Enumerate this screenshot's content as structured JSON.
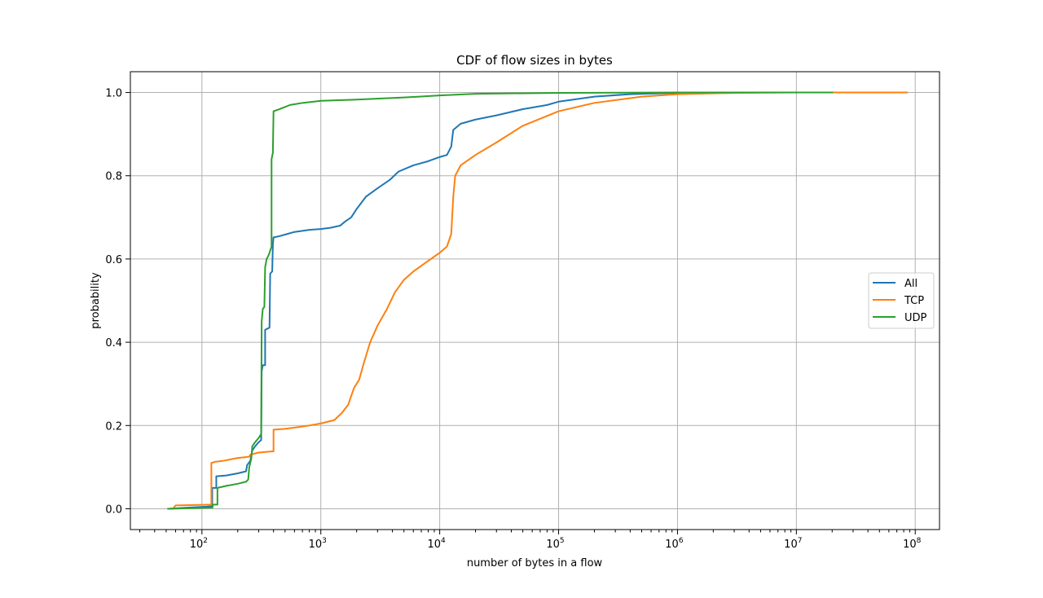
{
  "chart_data": {
    "type": "line",
    "title": "CDF of flow sizes in bytes",
    "xlabel": "number of bytes in a flow",
    "ylabel": "probability",
    "xscale": "log",
    "xlim": [
      25,
      160000000
    ],
    "ylim": [
      -0.05,
      1.05
    ],
    "grid": true,
    "legend_position": "center-right",
    "x_tick_labels": [
      {
        "base": "10",
        "exp": "2",
        "value": 100
      },
      {
        "base": "10",
        "exp": "3",
        "value": 1000
      },
      {
        "base": "10",
        "exp": "4",
        "value": 10000
      },
      {
        "base": "10",
        "exp": "5",
        "value": 100000
      },
      {
        "base": "10",
        "exp": "6",
        "value": 1000000
      },
      {
        "base": "10",
        "exp": "7",
        "value": 10000000
      },
      {
        "base": "10",
        "exp": "8",
        "value": 100000000
      }
    ],
    "y_ticks": [
      {
        "value": 0.0,
        "label": "0.0"
      },
      {
        "value": 0.2,
        "label": "0.2"
      },
      {
        "value": 0.4,
        "label": "0.4"
      },
      {
        "value": 0.6,
        "label": "0.6"
      },
      {
        "value": 0.8,
        "label": "0.8"
      },
      {
        "value": 1.0,
        "label": "1.0"
      }
    ],
    "series": [
      {
        "name": "All",
        "color": "#1f77b4",
        "points": [
          [
            52,
            0.0
          ],
          [
            80,
            0.003
          ],
          [
            110,
            0.005
          ],
          [
            122,
            0.006
          ],
          [
            122,
            0.05
          ],
          [
            132,
            0.05
          ],
          [
            132,
            0.078
          ],
          [
            160,
            0.08
          ],
          [
            200,
            0.085
          ],
          [
            235,
            0.09
          ],
          [
            240,
            0.105
          ],
          [
            255,
            0.115
          ],
          [
            265,
            0.14
          ],
          [
            280,
            0.15
          ],
          [
            300,
            0.16
          ],
          [
            315,
            0.165
          ],
          [
            318,
            0.33
          ],
          [
            325,
            0.345
          ],
          [
            340,
            0.345
          ],
          [
            340,
            0.43
          ],
          [
            370,
            0.435
          ],
          [
            375,
            0.565
          ],
          [
            390,
            0.57
          ],
          [
            395,
            0.635
          ],
          [
            400,
            0.652
          ],
          [
            450,
            0.655
          ],
          [
            520,
            0.66
          ],
          [
            600,
            0.665
          ],
          [
            800,
            0.67
          ],
          [
            1000,
            0.672
          ],
          [
            1200,
            0.675
          ],
          [
            1450,
            0.68
          ],
          [
            1600,
            0.69
          ],
          [
            1800,
            0.7
          ],
          [
            2000,
            0.72
          ],
          [
            2400,
            0.75
          ],
          [
            3000,
            0.77
          ],
          [
            3800,
            0.79
          ],
          [
            4500,
            0.81
          ],
          [
            6000,
            0.825
          ],
          [
            8000,
            0.835
          ],
          [
            10000,
            0.845
          ],
          [
            11500,
            0.85
          ],
          [
            12500,
            0.87
          ],
          [
            13000,
            0.91
          ],
          [
            15000,
            0.925
          ],
          [
            20000,
            0.935
          ],
          [
            30000,
            0.945
          ],
          [
            50000,
            0.96
          ],
          [
            80000,
            0.97
          ],
          [
            100000,
            0.978
          ],
          [
            200000,
            0.99
          ],
          [
            400000,
            0.996
          ],
          [
            1000000,
            0.999
          ],
          [
            5000000,
            1.0
          ],
          [
            20000000,
            1.0
          ]
        ]
      },
      {
        "name": "TCP",
        "color": "#ff7f0e",
        "points": [
          [
            57,
            0.0
          ],
          [
            60,
            0.008
          ],
          [
            120,
            0.01
          ],
          [
            120,
            0.11
          ],
          [
            130,
            0.113
          ],
          [
            150,
            0.115
          ],
          [
            200,
            0.122
          ],
          [
            250,
            0.125
          ],
          [
            255,
            0.13
          ],
          [
            300,
            0.135
          ],
          [
            390,
            0.138
          ],
          [
            400,
            0.138
          ],
          [
            400,
            0.19
          ],
          [
            500,
            0.192
          ],
          [
            600,
            0.195
          ],
          [
            800,
            0.2
          ],
          [
            1000,
            0.205
          ],
          [
            1300,
            0.213
          ],
          [
            1500,
            0.23
          ],
          [
            1700,
            0.25
          ],
          [
            1900,
            0.29
          ],
          [
            2100,
            0.31
          ],
          [
            2300,
            0.35
          ],
          [
            2600,
            0.4
          ],
          [
            3000,
            0.44
          ],
          [
            3600,
            0.48
          ],
          [
            4200,
            0.52
          ],
          [
            5000,
            0.55
          ],
          [
            6000,
            0.57
          ],
          [
            7500,
            0.59
          ],
          [
            10000,
            0.615
          ],
          [
            11500,
            0.63
          ],
          [
            12500,
            0.66
          ],
          [
            13000,
            0.75
          ],
          [
            13500,
            0.8
          ],
          [
            15000,
            0.825
          ],
          [
            20000,
            0.85
          ],
          [
            30000,
            0.88
          ],
          [
            50000,
            0.92
          ],
          [
            100000,
            0.955
          ],
          [
            200000,
            0.975
          ],
          [
            500000,
            0.99
          ],
          [
            1000000,
            0.996
          ],
          [
            3000000,
            0.999
          ],
          [
            10000000,
            1.0
          ],
          [
            85000000,
            1.0
          ]
        ]
      },
      {
        "name": "UDP",
        "color": "#2ca02c",
        "points": [
          [
            52,
            0.0
          ],
          [
            100,
            0.002
          ],
          [
            123,
            0.003
          ],
          [
            123,
            0.01
          ],
          [
            135,
            0.01
          ],
          [
            135,
            0.05
          ],
          [
            160,
            0.055
          ],
          [
            200,
            0.06
          ],
          [
            235,
            0.065
          ],
          [
            245,
            0.07
          ],
          [
            250,
            0.1
          ],
          [
            260,
            0.12
          ],
          [
            265,
            0.15
          ],
          [
            280,
            0.16
          ],
          [
            300,
            0.17
          ],
          [
            315,
            0.18
          ],
          [
            318,
            0.45
          ],
          [
            325,
            0.48
          ],
          [
            335,
            0.485
          ],
          [
            340,
            0.58
          ],
          [
            350,
            0.6
          ],
          [
            365,
            0.61
          ],
          [
            375,
            0.62
          ],
          [
            385,
            0.63
          ],
          [
            385,
            0.84
          ],
          [
            395,
            0.855
          ],
          [
            400,
            0.955
          ],
          [
            450,
            0.96
          ],
          [
            550,
            0.97
          ],
          [
            700,
            0.975
          ],
          [
            1000,
            0.98
          ],
          [
            2000,
            0.983
          ],
          [
            5000,
            0.988
          ],
          [
            10000,
            0.993
          ],
          [
            20000,
            0.997
          ],
          [
            100000,
            0.999
          ],
          [
            1000000,
            1.0
          ],
          [
            20000000,
            1.0
          ]
        ]
      }
    ]
  }
}
